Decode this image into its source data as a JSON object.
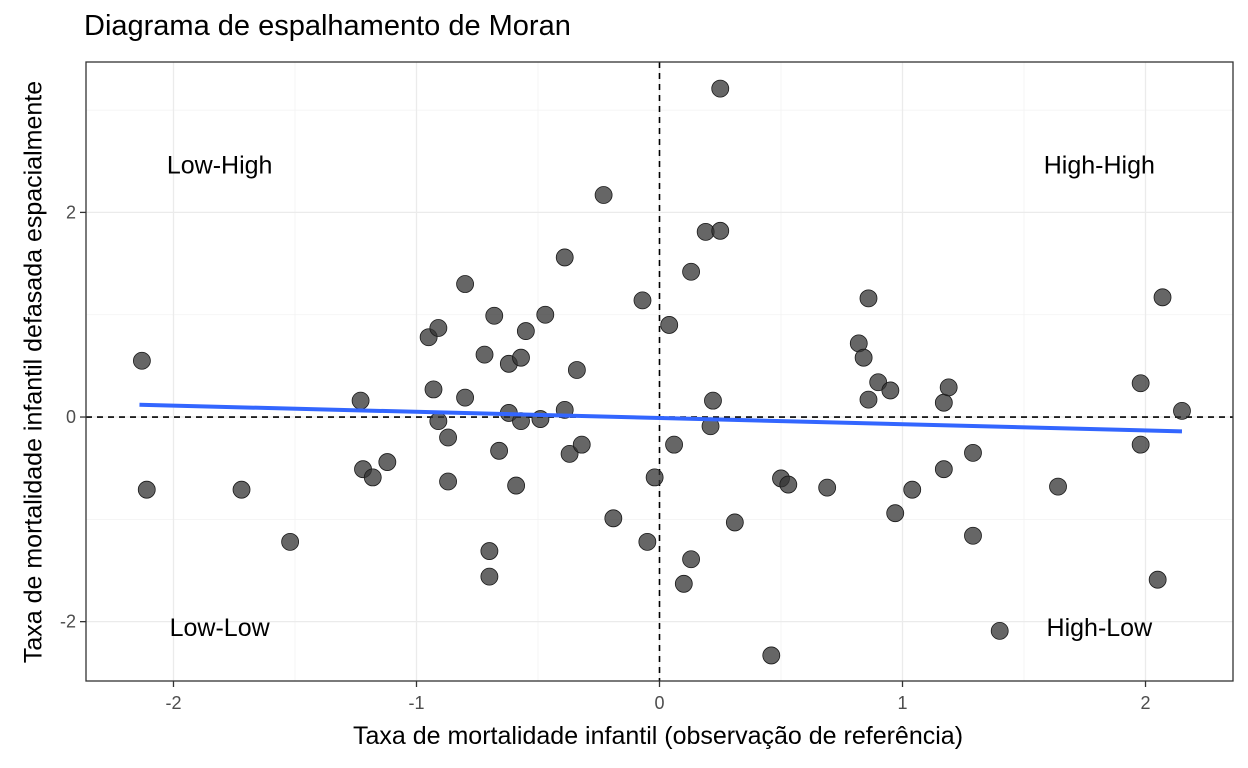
{
  "chart_data": {
    "type": "scatter",
    "title": "Diagrama de espalhamento de Moran",
    "xlabel": "Taxa de mortalidade infantil (observação de referência)",
    "ylabel": "Taxa de mortalidade infantil defasada espacialmente",
    "xlim": [
      -2.36,
      2.36
    ],
    "ylim": [
      -2.58,
      3.47
    ],
    "x_ticks": [
      -2,
      -1,
      0,
      1,
      2
    ],
    "x_tick_labels": [
      "-2",
      "-1",
      "0",
      "1",
      "2"
    ],
    "y_ticks": [
      -2,
      0,
      2
    ],
    "y_tick_labels": [
      "-2",
      "0",
      "2"
    ],
    "grid": true,
    "reference_lines": {
      "x": 0,
      "y": 0,
      "style": "dashed"
    },
    "quadrant_labels": [
      {
        "text": "Low-High",
        "x": -1.81,
        "y": 2.47
      },
      {
        "text": "High-High",
        "x": 1.81,
        "y": 2.47
      },
      {
        "text": "Low-Low",
        "x": -1.81,
        "y": -2.05
      },
      {
        "text": "High-Low",
        "x": 1.81,
        "y": -2.05
      }
    ],
    "fit_line": {
      "x": [
        -2.14,
        2.15
      ],
      "y": [
        0.12,
        -0.14
      ],
      "color": "#3366ff"
    },
    "point_color": "#333333",
    "points": [
      {
        "x": -2.13,
        "y": 0.55
      },
      {
        "x": -2.11,
        "y": -0.71
      },
      {
        "x": -1.72,
        "y": -0.71
      },
      {
        "x": -1.52,
        "y": -1.22
      },
      {
        "x": -1.23,
        "y": 0.16
      },
      {
        "x": -1.22,
        "y": -0.51
      },
      {
        "x": -1.18,
        "y": -0.59
      },
      {
        "x": -1.12,
        "y": -0.44
      },
      {
        "x": -0.95,
        "y": 0.78
      },
      {
        "x": -0.93,
        "y": 0.27
      },
      {
        "x": -0.91,
        "y": 0.87
      },
      {
        "x": -0.91,
        "y": -0.04
      },
      {
        "x": -0.87,
        "y": -0.2
      },
      {
        "x": -0.87,
        "y": -0.63
      },
      {
        "x": -0.8,
        "y": 1.3
      },
      {
        "x": -0.8,
        "y": 0.19
      },
      {
        "x": -0.72,
        "y": 0.61
      },
      {
        "x": -0.7,
        "y": -1.31
      },
      {
        "x": -0.7,
        "y": -1.56
      },
      {
        "x": -0.68,
        "y": 0.99
      },
      {
        "x": -0.66,
        "y": -0.33
      },
      {
        "x": -0.62,
        "y": 0.52
      },
      {
        "x": -0.62,
        "y": 0.04
      },
      {
        "x": -0.59,
        "y": -0.67
      },
      {
        "x": -0.57,
        "y": 0.58
      },
      {
        "x": -0.57,
        "y": -0.04
      },
      {
        "x": -0.55,
        "y": 0.84
      },
      {
        "x": -0.49,
        "y": -0.02
      },
      {
        "x": -0.47,
        "y": 1.0
      },
      {
        "x": -0.39,
        "y": 1.56
      },
      {
        "x": -0.39,
        "y": 0.07
      },
      {
        "x": -0.37,
        "y": -0.36
      },
      {
        "x": -0.34,
        "y": 0.46
      },
      {
        "x": -0.32,
        "y": -0.27
      },
      {
        "x": -0.23,
        "y": 2.17
      },
      {
        "x": -0.19,
        "y": -0.99
      },
      {
        "x": -0.07,
        "y": 1.14
      },
      {
        "x": -0.05,
        "y": -1.22
      },
      {
        "x": -0.02,
        "y": -0.59
      },
      {
        "x": 0.04,
        "y": 0.9
      },
      {
        "x": 0.06,
        "y": -0.27
      },
      {
        "x": 0.1,
        "y": -1.63
      },
      {
        "x": 0.13,
        "y": 1.42
      },
      {
        "x": 0.13,
        "y": -1.39
      },
      {
        "x": 0.19,
        "y": 1.81
      },
      {
        "x": 0.21,
        "y": -0.09
      },
      {
        "x": 0.22,
        "y": 0.16
      },
      {
        "x": 0.25,
        "y": 3.21
      },
      {
        "x": 0.25,
        "y": 1.82
      },
      {
        "x": 0.31,
        "y": -1.03
      },
      {
        "x": 0.46,
        "y": -2.33
      },
      {
        "x": 0.5,
        "y": -0.6
      },
      {
        "x": 0.53,
        "y": -0.66
      },
      {
        "x": 0.69,
        "y": -0.69
      },
      {
        "x": 0.82,
        "y": 0.72
      },
      {
        "x": 0.84,
        "y": 0.58
      },
      {
        "x": 0.86,
        "y": 1.16
      },
      {
        "x": 0.86,
        "y": 0.17
      },
      {
        "x": 0.9,
        "y": 0.34
      },
      {
        "x": 0.95,
        "y": 0.26
      },
      {
        "x": 0.97,
        "y": -0.94
      },
      {
        "x": 1.04,
        "y": -0.71
      },
      {
        "x": 1.17,
        "y": -0.51
      },
      {
        "x": 1.17,
        "y": 0.14
      },
      {
        "x": 1.19,
        "y": 0.29
      },
      {
        "x": 1.29,
        "y": -0.35
      },
      {
        "x": 1.29,
        "y": -1.16
      },
      {
        "x": 1.4,
        "y": -2.09
      },
      {
        "x": 1.64,
        "y": -0.68
      },
      {
        "x": 1.98,
        "y": 0.33
      },
      {
        "x": 1.98,
        "y": -0.27
      },
      {
        "x": 2.05,
        "y": -1.59
      },
      {
        "x": 2.07,
        "y": 1.17
      },
      {
        "x": 2.15,
        "y": 0.06
      }
    ]
  }
}
